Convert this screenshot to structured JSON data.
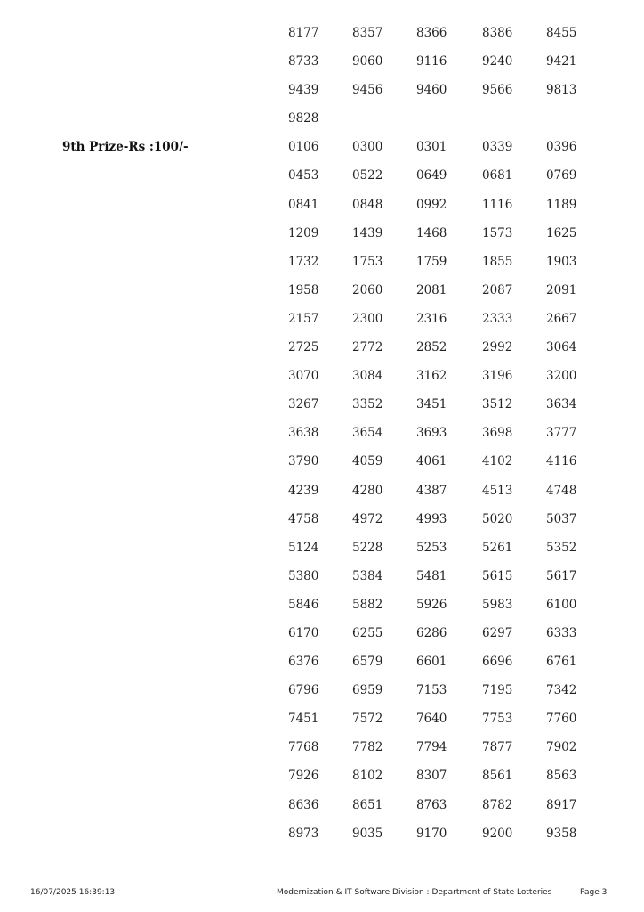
{
  "sections": [
    {
      "label": "",
      "numbers": [
        "8177",
        "8357",
        "8366",
        "8386",
        "8455",
        "8733",
        "9060",
        "9116",
        "9240",
        "9421",
        "9439",
        "9456",
        "9460",
        "9566",
        "9813",
        "9828"
      ]
    },
    {
      "label": "9th Prize-Rs :100/-",
      "numbers": [
        "0106",
        "0300",
        "0301",
        "0339",
        "0396",
        "0453",
        "0522",
        "0649",
        "0681",
        "0769",
        "0841",
        "0848",
        "0992",
        "1116",
        "1189",
        "1209",
        "1439",
        "1468",
        "1573",
        "1625",
        "1732",
        "1753",
        "1759",
        "1855",
        "1903",
        "1958",
        "2060",
        "2081",
        "2087",
        "2091",
        "2157",
        "2300",
        "2316",
        "2333",
        "2667",
        "2725",
        "2772",
        "2852",
        "2992",
        "3064",
        "3070",
        "3084",
        "3162",
        "3196",
        "3200",
        "3267",
        "3352",
        "3451",
        "3512",
        "3634",
        "3638",
        "3654",
        "3693",
        "3698",
        "3777",
        "3790",
        "4059",
        "4061",
        "4102",
        "4116",
        "4239",
        "4280",
        "4387",
        "4513",
        "4748",
        "4758",
        "4972",
        "4993",
        "5020",
        "5037",
        "5124",
        "5228",
        "5253",
        "5261",
        "5352",
        "5380",
        "5384",
        "5481",
        "5615",
        "5617",
        "5846",
        "5882",
        "5926",
        "5983",
        "6100",
        "6170",
        "6255",
        "6286",
        "6297",
        "6333",
        "6376",
        "6579",
        "6601",
        "6696",
        "6761",
        "6796",
        "6959",
        "7153",
        "7195",
        "7342",
        "7451",
        "7572",
        "7640",
        "7753",
        "7760",
        "7768",
        "7782",
        "7794",
        "7877",
        "7902",
        "7926",
        "8102",
        "8307",
        "8561",
        "8563",
        "8636",
        "8651",
        "8763",
        "8782",
        "8917",
        "8973",
        "9035",
        "9170",
        "9200",
        "9358"
      ]
    }
  ],
  "footer": {
    "timestamp": "16/07/2025 16:39:13",
    "division": "Modernization & IT Software Division : Department of State Lotteries",
    "page": "Page 3"
  }
}
